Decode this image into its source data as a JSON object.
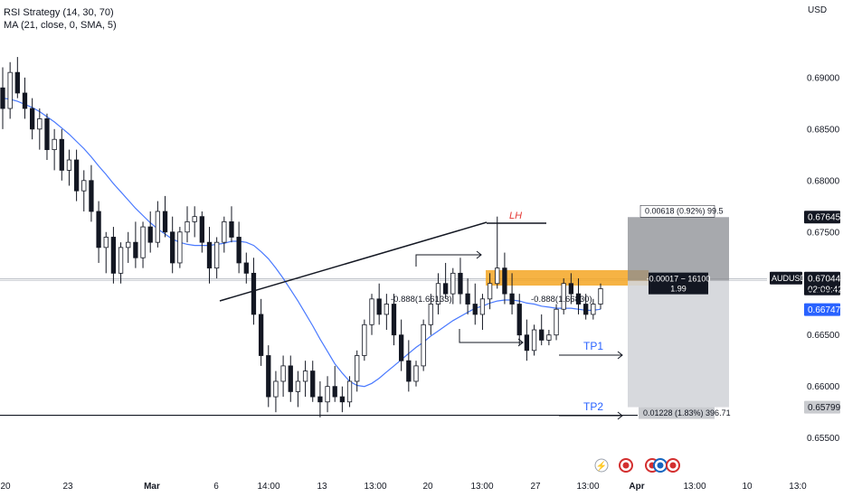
{
  "header": {
    "currency": "USD",
    "legend_line1": "RSI Strategy (14, 30, 70)",
    "legend_line2": "MA (21, close, 0, SMA, 5)"
  },
  "chart_data": {
    "type": "candlestick",
    "symbol": "AUDUSD",
    "ylim": [
      0.6526,
      0.6942
    ],
    "y_ticks": [
      {
        "value": 0.69,
        "label": "0.69000"
      },
      {
        "value": 0.685,
        "label": "0.68500"
      },
      {
        "value": 0.68,
        "label": "0.68000"
      },
      {
        "value": 0.675,
        "label": "0.67500"
      },
      {
        "value": 0.67,
        "label": "0.67000"
      },
      {
        "value": 0.665,
        "label": "0.66500"
      },
      {
        "value": 0.66,
        "label": "0.66000"
      },
      {
        "value": 0.655,
        "label": "0.65500"
      }
    ],
    "x_ticks": [
      "20",
      "23",
      "Mar",
      "6",
      "14:00",
      "13",
      "13:00",
      "20",
      "13:00",
      "27",
      "13:00",
      "Apr",
      "13:00",
      "10",
      "13:0"
    ],
    "price_labels": {
      "target": "0.67645",
      "current": "0.67044",
      "countdown": "02:09:42",
      "level_a": "0.67027",
      "level_b": "0.66747",
      "stop": "0.65799"
    },
    "position_tool": {
      "entry": 0.67027,
      "target": 0.67645,
      "stop": 0.65799,
      "target_text": "0.00618 (0.92%) 99.5",
      "stop_text": "0.01228 (1.83%) 396.71",
      "center_text_1": "-0.00017 − 16100",
      "center_text_2": "1.99"
    },
    "annotations": {
      "lh": "LH",
      "tp1": "TP1",
      "tp2": "TP2",
      "fib_left": "-0.888(1.66133)",
      "fib_right": "-0.888(1.66830)"
    },
    "support_level": 0.6572,
    "resistance_zone": [
      0.6698,
      0.6713
    ],
    "candles": [
      [
        0.689,
        0.691,
        0.685,
        0.687
      ],
      [
        0.687,
        0.6915,
        0.686,
        0.6905
      ],
      [
        0.6905,
        0.692,
        0.688,
        0.6885
      ],
      [
        0.6885,
        0.69,
        0.686,
        0.687
      ],
      [
        0.687,
        0.688,
        0.684,
        0.685
      ],
      [
        0.685,
        0.687,
        0.683,
        0.686
      ],
      [
        0.686,
        0.6865,
        0.682,
        0.683
      ],
      [
        0.683,
        0.685,
        0.681,
        0.684
      ],
      [
        0.684,
        0.685,
        0.68,
        0.681
      ],
      [
        0.681,
        0.683,
        0.6795,
        0.682
      ],
      [
        0.682,
        0.683,
        0.678,
        0.679
      ],
      [
        0.679,
        0.681,
        0.677,
        0.68
      ],
      [
        0.68,
        0.6815,
        0.676,
        0.677
      ],
      [
        0.677,
        0.678,
        0.672,
        0.6735
      ],
      [
        0.6735,
        0.675,
        0.671,
        0.6745
      ],
      [
        0.6745,
        0.6755,
        0.67,
        0.671
      ],
      [
        0.671,
        0.674,
        0.67,
        0.6735
      ],
      [
        0.6735,
        0.675,
        0.672,
        0.674
      ],
      [
        0.674,
        0.676,
        0.6715,
        0.6725
      ],
      [
        0.6725,
        0.676,
        0.6715,
        0.6755
      ],
      [
        0.6755,
        0.677,
        0.673,
        0.674
      ],
      [
        0.674,
        0.678,
        0.6735,
        0.677
      ],
      [
        0.677,
        0.6785,
        0.6745,
        0.675
      ],
      [
        0.675,
        0.6765,
        0.671,
        0.672
      ],
      [
        0.672,
        0.6755,
        0.6715,
        0.675
      ],
      [
        0.675,
        0.6775,
        0.674,
        0.676
      ],
      [
        0.676,
        0.6775,
        0.6745,
        0.6765
      ],
      [
        0.6765,
        0.677,
        0.673,
        0.674
      ],
      [
        0.674,
        0.6755,
        0.67,
        0.6715
      ],
      [
        0.6715,
        0.6745,
        0.6705,
        0.674
      ],
      [
        0.674,
        0.6765,
        0.673,
        0.676
      ],
      [
        0.676,
        0.6775,
        0.674,
        0.6745
      ],
      [
        0.6745,
        0.676,
        0.671,
        0.672
      ],
      [
        0.672,
        0.673,
        0.67,
        0.671
      ],
      [
        0.671,
        0.6725,
        0.666,
        0.667
      ],
      [
        0.667,
        0.6685,
        0.662,
        0.663
      ],
      [
        0.663,
        0.664,
        0.658,
        0.659
      ],
      [
        0.659,
        0.6615,
        0.6575,
        0.6605
      ],
      [
        0.6605,
        0.663,
        0.659,
        0.662
      ],
      [
        0.662,
        0.663,
        0.6585,
        0.6595
      ],
      [
        0.6595,
        0.6615,
        0.658,
        0.6605
      ],
      [
        0.6605,
        0.6625,
        0.659,
        0.6615
      ],
      [
        0.6615,
        0.6625,
        0.6585,
        0.659
      ],
      [
        0.659,
        0.6605,
        0.657,
        0.6585
      ],
      [
        0.6585,
        0.661,
        0.6575,
        0.66
      ],
      [
        0.66,
        0.662,
        0.6585,
        0.659
      ],
      [
        0.659,
        0.66,
        0.6575,
        0.6585
      ],
      [
        0.6585,
        0.661,
        0.658,
        0.6605
      ],
      [
        0.6605,
        0.6635,
        0.6595,
        0.663
      ],
      [
        0.663,
        0.6665,
        0.6625,
        0.666
      ],
      [
        0.666,
        0.669,
        0.665,
        0.6685
      ],
      [
        0.6685,
        0.67,
        0.666,
        0.667
      ],
      [
        0.667,
        0.669,
        0.6655,
        0.668
      ],
      [
        0.668,
        0.669,
        0.664,
        0.665
      ],
      [
        0.665,
        0.6665,
        0.6615,
        0.6625
      ],
      [
        0.6625,
        0.6645,
        0.6595,
        0.6605
      ],
      [
        0.6605,
        0.6625,
        0.66,
        0.662
      ],
      [
        0.662,
        0.6665,
        0.6615,
        0.666
      ],
      [
        0.666,
        0.669,
        0.665,
        0.668
      ],
      [
        0.668,
        0.671,
        0.667,
        0.67
      ],
      [
        0.67,
        0.672,
        0.6685,
        0.669
      ],
      [
        0.669,
        0.6715,
        0.668,
        0.671
      ],
      [
        0.671,
        0.6725,
        0.668,
        0.669
      ],
      [
        0.669,
        0.6705,
        0.667,
        0.668
      ],
      [
        0.668,
        0.67,
        0.666,
        0.667
      ],
      [
        0.667,
        0.669,
        0.6655,
        0.6685
      ],
      [
        0.6685,
        0.671,
        0.6675,
        0.67
      ],
      [
        0.67,
        0.6765,
        0.6695,
        0.6715
      ],
      [
        0.6715,
        0.673,
        0.668,
        0.669
      ],
      [
        0.669,
        0.671,
        0.667,
        0.668
      ],
      [
        0.668,
        0.669,
        0.664,
        0.665
      ],
      [
        0.665,
        0.6665,
        0.6625,
        0.6635
      ],
      [
        0.6635,
        0.666,
        0.663,
        0.6655
      ],
      [
        0.6655,
        0.667,
        0.664,
        0.6645
      ],
      [
        0.6645,
        0.6655,
        0.664,
        0.665
      ],
      [
        0.665,
        0.668,
        0.6645,
        0.6675
      ],
      [
        0.6675,
        0.6705,
        0.667,
        0.67
      ],
      [
        0.67,
        0.671,
        0.668,
        0.669
      ],
      [
        0.669,
        0.6705,
        0.667,
        0.668
      ],
      [
        0.668,
        0.669,
        0.6665,
        0.667
      ],
      [
        0.667,
        0.6685,
        0.6665,
        0.668
      ],
      [
        0.668,
        0.67,
        0.6675,
        0.6695
      ]
    ],
    "ma": [
      0.688,
      0.6879,
      0.6877,
      0.6874,
      0.6871,
      0.6867,
      0.6862,
      0.6857,
      0.6851,
      0.6845,
      0.6838,
      0.6831,
      0.6823,
      0.6814,
      0.6806,
      0.6797,
      0.6789,
      0.6781,
      0.6773,
      0.6766,
      0.6759,
      0.6753,
      0.6748,
      0.6743,
      0.674,
      0.6738,
      0.6737,
      0.6737,
      0.6737,
      0.6738,
      0.6739,
      0.6741,
      0.6741,
      0.674,
      0.6737,
      0.6731,
      0.6724,
      0.6715,
      0.6705,
      0.6694,
      0.6683,
      0.6671,
      0.6659,
      0.6646,
      0.6634,
      0.6622,
      0.6613,
      0.6605,
      0.6601,
      0.66,
      0.6603,
      0.6608,
      0.6614,
      0.662,
      0.6626,
      0.6632,
      0.6638,
      0.6643,
      0.6649,
      0.6654,
      0.6659,
      0.6664,
      0.6668,
      0.6672,
      0.6676,
      0.6678,
      0.6681,
      0.6683,
      0.6684,
      0.6684,
      0.6683,
      0.6681,
      0.668,
      0.6678,
      0.6677,
      0.6676,
      0.6676,
      0.6676,
      0.6675,
      0.6674,
      0.6674,
      0.6675
    ]
  }
}
